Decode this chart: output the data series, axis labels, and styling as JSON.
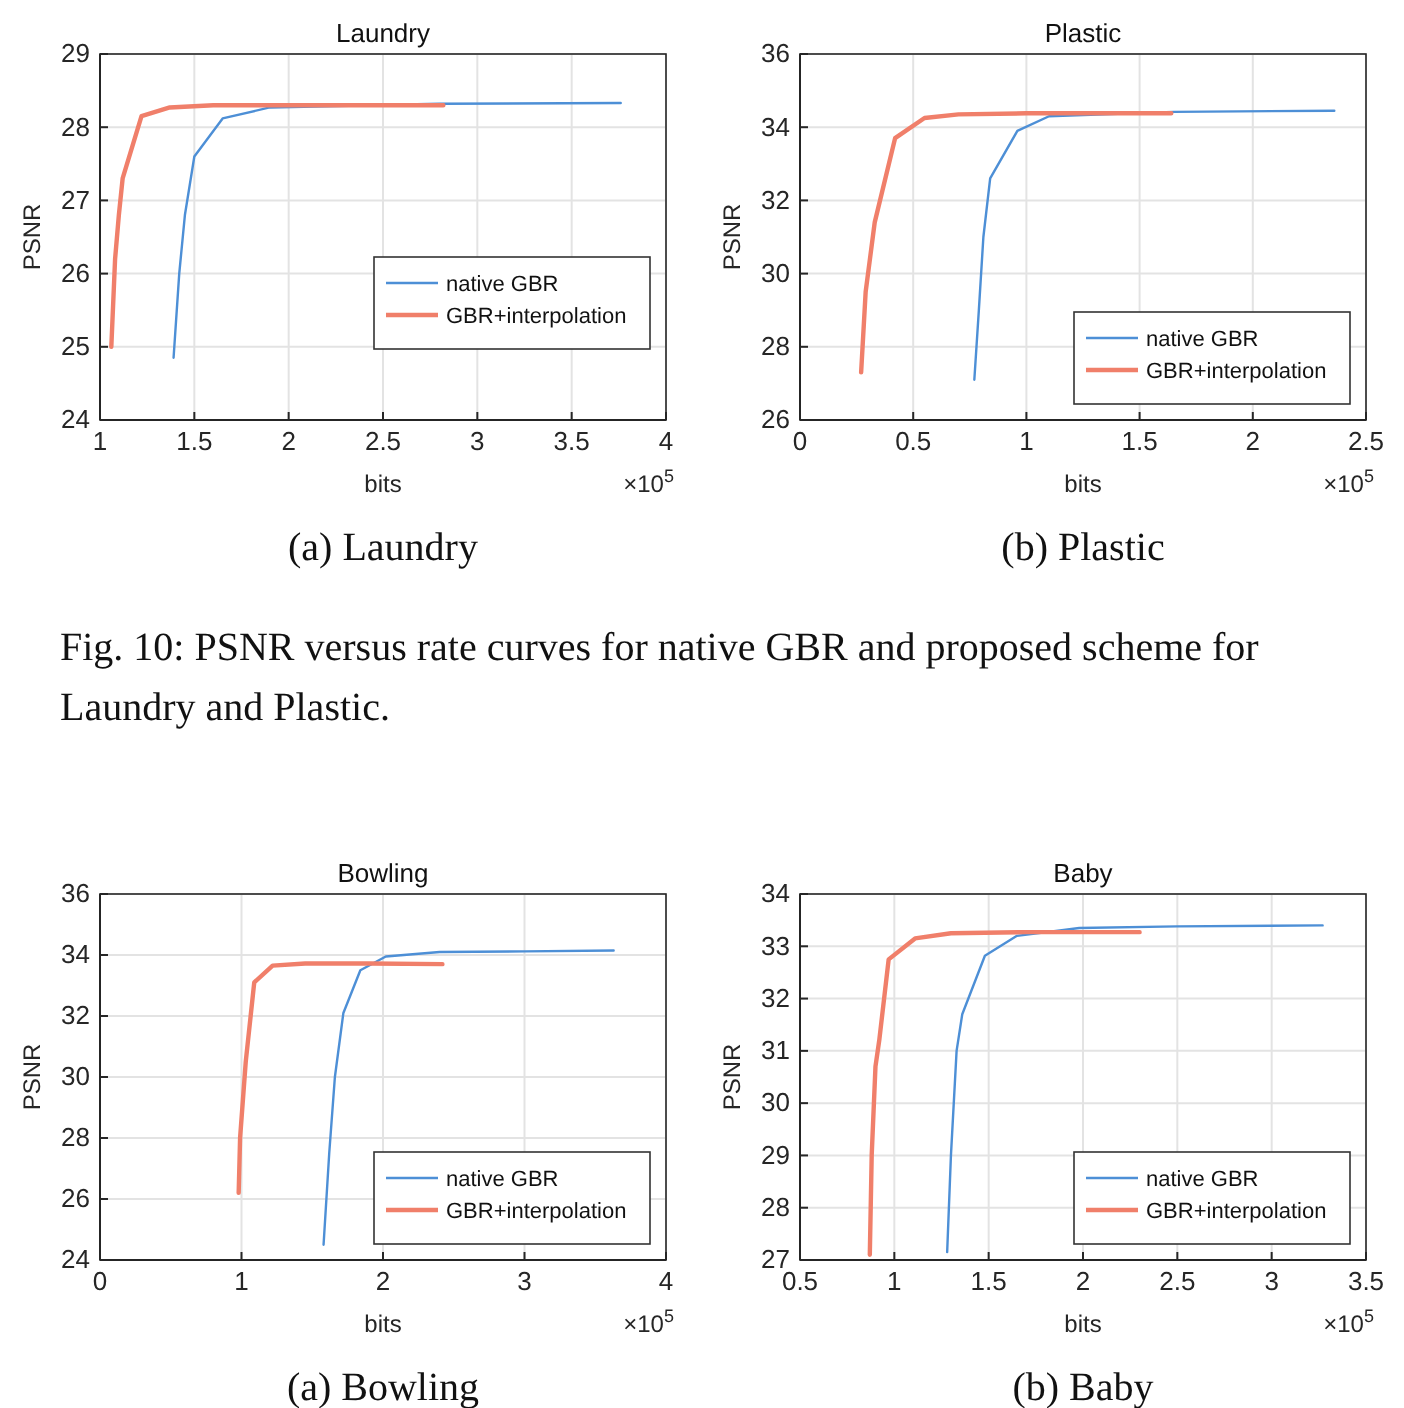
{
  "chart_data": [
    {
      "type": "line",
      "title": "Laundry",
      "xlabel": "bits",
      "ylabel": "PSNR",
      "xlim": [
        1,
        4
      ],
      "xticks": [
        1,
        1.5,
        2,
        2.5,
        3,
        3.5,
        4
      ],
      "ylim": [
        24,
        29
      ],
      "yticks": [
        24,
        25,
        26,
        27,
        28,
        29
      ],
      "grid": true,
      "legend": "right",
      "annotations": [
        "×10$^{5}$",
        "(a) Laundry"
      ],
      "series": [
        {
          "name": "native GBR",
          "color": "#4d8fd6",
          "x": [
            1.39,
            1.42,
            1.45,
            1.5,
            1.65,
            1.9,
            2.2,
            2.8,
            3.76
          ],
          "values": [
            24.85,
            26.0,
            26.8,
            27.6,
            28.12,
            28.27,
            null,
            28.32,
            28.33
          ]
        },
        {
          "name": "GBR+interpolation",
          "color": "#f07f6a",
          "x": [
            1.06,
            1.08,
            1.1,
            1.12,
            1.22,
            1.37,
            1.6,
            2.0,
            2.82
          ],
          "values": [
            25.0,
            26.2,
            26.8,
            27.3,
            28.15,
            28.27,
            28.3,
            28.3,
            28.3
          ]
        }
      ]
    },
    {
      "type": "line",
      "title": "Plastic",
      "xlabel": "bits",
      "ylabel": "PSNR",
      "xlim": [
        0,
        2.5
      ],
      "xticks": [
        0,
        0.5,
        1,
        1.5,
        2,
        2.5
      ],
      "ylim": [
        26,
        36
      ],
      "yticks": [
        26,
        28,
        30,
        32,
        34,
        36
      ],
      "grid": true,
      "legend": "bottom right",
      "annotations": [
        "×10$^{5}$",
        "(b) Plastic",
        "Fig. 10: PSNR versus rate curves for native GBR and proposed scheme for Laundry and Plastic."
      ],
      "series": [
        {
          "name": "native GBR",
          "color": "#4d8fd6",
          "x": [
            0.77,
            0.79,
            0.81,
            0.84,
            0.96,
            1.1,
            1.3,
            1.65,
            2.36
          ],
          "values": [
            27.1,
            29,
            31,
            32.6,
            33.9,
            34.3,
            null,
            34.42,
            34.45
          ]
        },
        {
          "name": "GBR+interpolation",
          "color": "#f07f6a",
          "x": [
            0.27,
            0.29,
            0.33,
            0.42,
            0.55,
            0.7,
            1.0,
            1.64
          ],
          "values": [
            27.3,
            29.5,
            31.4,
            33.7,
            34.25,
            34.35,
            34.38,
            34.38
          ]
        }
      ]
    },
    {
      "type": "line",
      "title": "Bowling",
      "xlabel": "bits",
      "ylabel": "PSNR",
      "xlim": [
        0,
        4
      ],
      "xticks": [
        0,
        1,
        2,
        3,
        4
      ],
      "ylim": [
        24,
        36
      ],
      "yticks": [
        24,
        26,
        28,
        30,
        32,
        34,
        36
      ],
      "grid": true,
      "legend": "bottom right",
      "annotations": [
        "×10$^{5}$",
        "(a) Bowling"
      ],
      "series": [
        {
          "name": "native GBR",
          "color": "#4d8fd6",
          "x": [
            1.58,
            1.62,
            1.66,
            1.72,
            1.84,
            2.02,
            2.4,
            3.0,
            3.63
          ],
          "values": [
            24.5,
            27.5,
            30,
            32.1,
            33.5,
            33.95,
            34.1,
            34.12,
            34.15
          ]
        },
        {
          "name": "GBR+interpolation",
          "color": "#f07f6a",
          "x": [
            0.98,
            0.99,
            1.03,
            1.09,
            1.22,
            1.45,
            1.9,
            2.42
          ],
          "values": [
            26.2,
            28,
            30.5,
            33.1,
            33.65,
            33.72,
            33.72,
            33.7
          ]
        }
      ]
    },
    {
      "type": "line",
      "title": "Baby",
      "xlabel": "bits",
      "ylabel": "PSNR",
      "xlim": [
        0.5,
        3.5
      ],
      "xticks": [
        0.5,
        1,
        1.5,
        2,
        2.5,
        3,
        3.5
      ],
      "ylim": [
        27,
        34
      ],
      "yticks": [
        27,
        28,
        29,
        30,
        31,
        32,
        33,
        34
      ],
      "grid": true,
      "legend": "bottom right",
      "annotations": [
        "×10$^{5}$",
        "(b) Baby"
      ],
      "series": [
        {
          "name": "native GBR",
          "color": "#4d8fd6",
          "x": [
            1.28,
            1.3,
            1.33,
            1.36,
            1.48,
            1.65,
            1.98,
            2.5,
            3.27
          ],
          "values": [
            27.15,
            29,
            31,
            31.7,
            32.82,
            33.2,
            33.35,
            33.38,
            33.4
          ]
        },
        {
          "name": "GBR+interpolation",
          "color": "#f07f6a",
          "x": [
            0.87,
            0.88,
            0.9,
            0.92,
            0.97,
            1.11,
            1.3,
            1.7,
            2.3
          ],
          "values": [
            27.1,
            29,
            30.7,
            31.2,
            32.75,
            33.15,
            33.25,
            33.27,
            33.27
          ]
        }
      ]
    }
  ]
}
